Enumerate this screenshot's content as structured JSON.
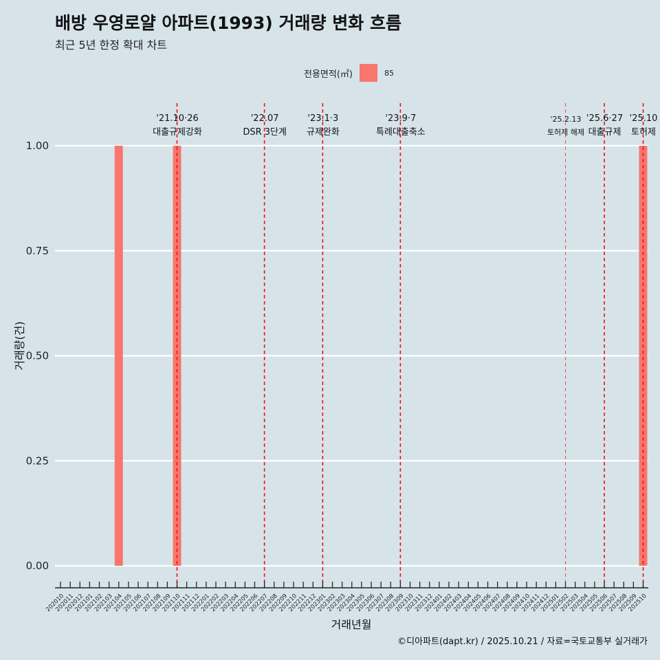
{
  "header": {
    "title": "배방 우영로얄 아파트(1993) 거래량 변화 흐름",
    "subtitle": "최근 5년 한정 확대 차트"
  },
  "legend": {
    "title": "전용면적(㎡)",
    "items": [
      {
        "label": "85",
        "color": "#f8766d"
      }
    ]
  },
  "caption": "©디아파트(dapt.kr) / 2025.10.21 / 자료=국토교통부 실거래가",
  "chart_data": {
    "type": "bar",
    "title": "배방 우영로얄 아파트(1993) 거래량 변화 흐름",
    "xlabel": "거래년월",
    "ylabel": "거래량(건)",
    "ylim": [
      0,
      1
    ],
    "yticks": [
      "0.00",
      "0.25",
      "0.50",
      "0.75",
      "1.00"
    ],
    "categories": [
      "202010",
      "202011",
      "202012",
      "202101",
      "202102",
      "202103",
      "202104",
      "202105",
      "202106",
      "202107",
      "202108",
      "202109",
      "202110",
      "202111",
      "202112",
      "202201",
      "202202",
      "202203",
      "202204",
      "202205",
      "202206",
      "202207",
      "202208",
      "202209",
      "202210",
      "202211",
      "202212",
      "202301",
      "202302",
      "202303",
      "202304",
      "202305",
      "202306",
      "202307",
      "202308",
      "202309",
      "202310",
      "202311",
      "202312",
      "202401",
      "202402",
      "202403",
      "202404",
      "202405",
      "202406",
      "202407",
      "202408",
      "202409",
      "202410",
      "202411",
      "202412",
      "202501",
      "202502",
      "202503",
      "202504",
      "202505",
      "202506",
      "202507",
      "202508",
      "202509",
      "202510"
    ],
    "series": [
      {
        "name": "85",
        "color": "#f8766d",
        "values": [
          0,
          0,
          0,
          0,
          0,
          0,
          1,
          0,
          0,
          0,
          0,
          0,
          1,
          0,
          0,
          0,
          0,
          0,
          0,
          0,
          0,
          0,
          0,
          0,
          0,
          0,
          0,
          0,
          0,
          0,
          0,
          0,
          0,
          0,
          0,
          0,
          0,
          0,
          0,
          0,
          0,
          0,
          0,
          0,
          0,
          0,
          0,
          0,
          0,
          0,
          0,
          0,
          0,
          0,
          0,
          0,
          0,
          0,
          0,
          0,
          1
        ]
      }
    ],
    "annotations": [
      {
        "month": "202110",
        "date": "'21.10·26",
        "label": "대출규제강화",
        "style": "major"
      },
      {
        "month": "202207",
        "date": "'22.07",
        "label": "DSR 3단계",
        "style": "major"
      },
      {
        "month": "202301",
        "date": "'23.1·3",
        "label": "규제완화",
        "style": "major"
      },
      {
        "month": "202309",
        "date": "'23.9·7",
        "label": "특례대출축소",
        "style": "major"
      },
      {
        "month": "202502",
        "date": "'25.2.13",
        "label": "토허제 해제",
        "style": "minor"
      },
      {
        "month": "202506",
        "date": "'25.6·27",
        "label": "대출규제",
        "style": "major"
      },
      {
        "month": "202510",
        "date": "'25.10",
        "label": "토허제",
        "style": "major"
      }
    ]
  }
}
